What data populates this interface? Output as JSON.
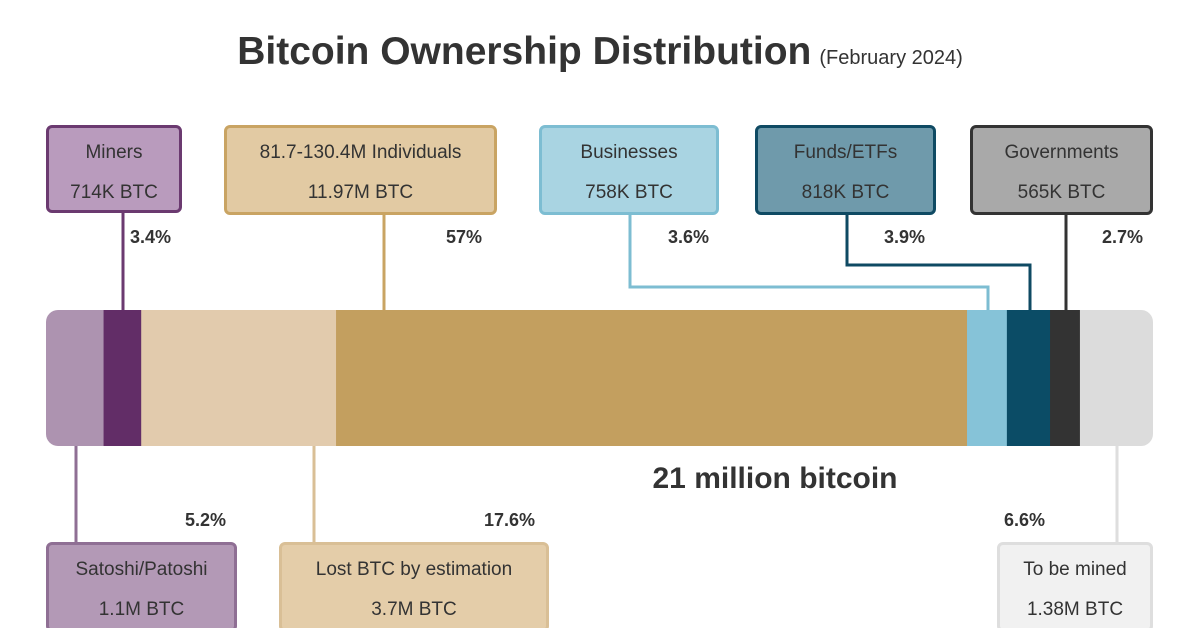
{
  "chart_data": {
    "type": "stacked-bar",
    "title": "Bitcoin Ownership Distribution",
    "subtitle": "(February 2024)",
    "total_label": "21 million bitcoin",
    "segments": [
      {
        "name": "Satoshi/Patoshi",
        "amount": "1.1M BTC",
        "percent": 5.2,
        "percent_label": "5.2%",
        "fill": "#ad93b0",
        "box_fill": "#b399b6",
        "box_border": "#8f6f94",
        "position": "bottom"
      },
      {
        "name": "Miners",
        "amount": "714K BTC",
        "percent": 3.4,
        "percent_label": "3.4%",
        "fill": "#622d67",
        "box_fill": "#b99bbd",
        "box_border": "#6b3a70",
        "position": "top"
      },
      {
        "name": "Lost BTC by estimation",
        "amount": "3.7M BTC",
        "percent": 17.6,
        "percent_label": "17.6%",
        "fill": "#e2cbad",
        "box_fill": "#e4cda9",
        "box_border": "#d9bf96",
        "position": "bottom"
      },
      {
        "name": "81.7-130.4M Individuals",
        "amount": "11.97M BTC",
        "percent": 57,
        "percent_label": "57%",
        "fill": "#c39f5f",
        "box_fill": "#e2caa3",
        "box_border": "#c9a463",
        "position": "top"
      },
      {
        "name": "Businesses",
        "amount": "758K BTC",
        "percent": 3.6,
        "percent_label": "3.6%",
        "fill": "#86c3d8",
        "box_fill": "#a9d4e2",
        "box_border": "#7dbdd2",
        "position": "top"
      },
      {
        "name": "Funds/ETFs",
        "amount": "818K BTC",
        "percent": 3.9,
        "percent_label": "3.9%",
        "fill": "#0b4c66",
        "box_fill": "#6f9aab",
        "box_border": "#0f4a63",
        "position": "top"
      },
      {
        "name": "Governments",
        "amount": "565K BTC",
        "percent": 2.7,
        "percent_label": "2.7%",
        "fill": "#333333",
        "box_fill": "#a9a9a9",
        "box_border": "#333333",
        "position": "top"
      },
      {
        "name": "To be mined",
        "amount": "1.38M BTC",
        "percent": 6.6,
        "percent_label": "6.6%",
        "fill": "#dcdcdc",
        "box_fill": "#f1f1f1",
        "box_border": "#dedede",
        "position": "bottom"
      }
    ]
  }
}
